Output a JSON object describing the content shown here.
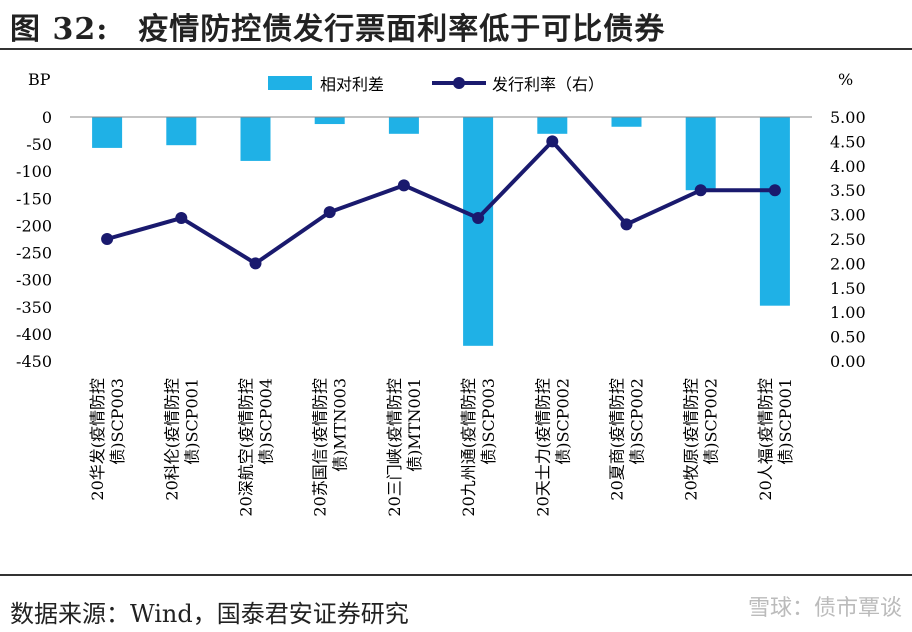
{
  "title": {
    "figure": "图 32:",
    "text": "疫情防控债发行票面利率低于可比债券"
  },
  "source": "数据来源：Wind，国泰君安证券研究",
  "watermark": "雪球：债市覃谈",
  "colors": {
    "bar": "#1fb1e6",
    "line": "#1a1a6e"
  },
  "chart_data": {
    "type": "bar+line",
    "left_axis_label": "BP",
    "right_axis_label": "%",
    "categories": [
      "20华发(疫情防控债)SCP003",
      "20科伦(疫情防控债)SCP001",
      "20深航空(疫情防控债)SCP004",
      "20苏国信(疫情防控债)MTN003",
      "20三门峡(疫情防控债)MTN001",
      "20九州通(疫情防控债)SCP003",
      "20天士力(疫情防控债)SCP002",
      "20夏商(疫情防控债)SCP002",
      "20牧原(疫情防控债)SCP002",
      "20人福(疫情防控债)SCP001"
    ],
    "series": [
      {
        "name": "相对利差",
        "type": "bar",
        "axis": "left",
        "values": [
          -57,
          -52,
          -81,
          -13,
          -31,
          -422,
          -31,
          -18,
          -135,
          -348
        ]
      },
      {
        "name": "发行利率（右）",
        "type": "line",
        "axis": "right",
        "values": [
          2.5,
          2.93,
          2.0,
          3.05,
          3.6,
          2.93,
          4.5,
          2.8,
          3.5,
          3.5
        ]
      }
    ],
    "left_ylim": [
      -450,
      0
    ],
    "left_ticks": [
      "0",
      "-50",
      "-100",
      "-150",
      "-200",
      "-250",
      "-300",
      "-350",
      "-400",
      "-450"
    ],
    "right_ylim": [
      0,
      5
    ],
    "right_ticks": [
      "5.00",
      "4.50",
      "4.00",
      "3.50",
      "3.00",
      "2.50",
      "2.00",
      "1.50",
      "1.00",
      "0.50",
      "0.00"
    ],
    "legend": "top"
  }
}
